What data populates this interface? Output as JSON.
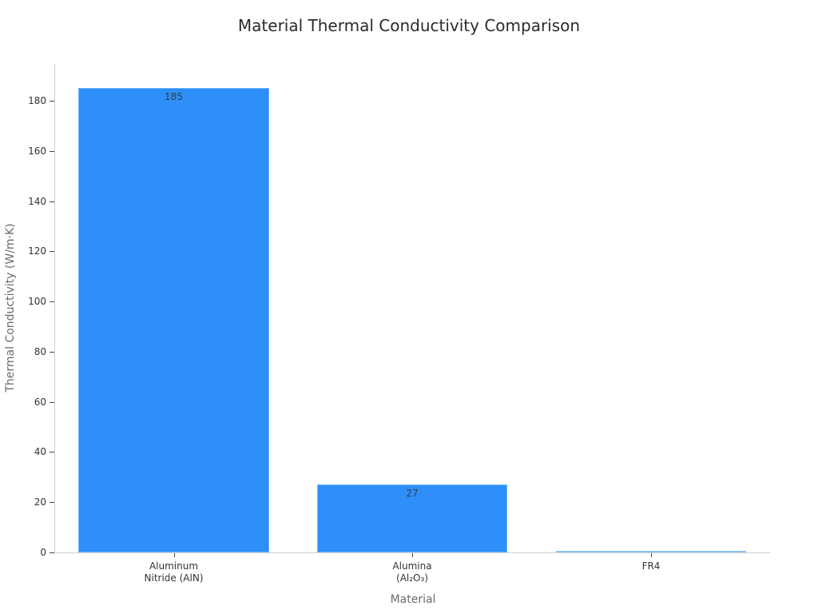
{
  "chart_data": {
    "type": "bar",
    "title": "Material Thermal Conductivity Comparison",
    "xlabel": "Material",
    "ylabel": "Thermal Conductivity (W/m·K)",
    "categories": [
      "Aluminum Nitride (AlN)",
      "Alumina (Al₂O₃)",
      "FR4"
    ],
    "category_lines": [
      [
        "Aluminum",
        "Nitride (AlN)"
      ],
      [
        "Alumina",
        "(Al₂O₃)"
      ],
      [
        "FR4"
      ]
    ],
    "values": [
      185,
      27,
      0.3
    ],
    "data_labels": [
      "185",
      "27",
      ""
    ],
    "ylim": [
      0,
      195
    ],
    "yticks": [
      0,
      20,
      40,
      60,
      80,
      100,
      120,
      140,
      160,
      180
    ],
    "grid": false,
    "legend": null,
    "colors": {
      "bar": "#2d8ff7",
      "bar_edge": "#6fb6ff",
      "fr4_bar": "#8fc3f0"
    }
  },
  "yticks_labels": [
    "0",
    "20",
    "40",
    "60",
    "80",
    "100",
    "120",
    "140",
    "160",
    "180"
  ]
}
